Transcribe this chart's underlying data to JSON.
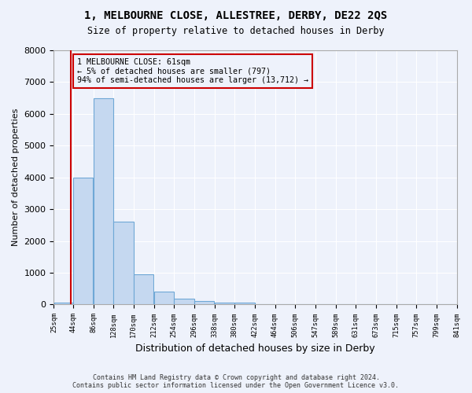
{
  "title": "1, MELBOURNE CLOSE, ALLESTREE, DERBY, DE22 2QS",
  "subtitle": "Size of property relative to detached houses in Derby",
  "xlabel": "Distribution of detached houses by size in Derby",
  "ylabel": "Number of detached properties",
  "bin_edges": [
    25,
    65,
    107,
    149,
    191,
    233,
    275,
    317,
    359,
    401,
    443,
    485,
    527,
    569,
    611,
    653,
    695,
    737,
    779,
    821,
    863
  ],
  "bar_values": [
    50,
    4000,
    6500,
    2600,
    950,
    400,
    180,
    100,
    60,
    50,
    10,
    5,
    3,
    2,
    1,
    1,
    0,
    0,
    0,
    0
  ],
  "bar_color": "#c5d8f0",
  "bar_edge_color": "#6fa8d6",
  "tick_labels": [
    "25sqm",
    "44sqm",
    "86sqm",
    "128sqm",
    "170sqm",
    "212sqm",
    "254sqm",
    "296sqm",
    "338sqm",
    "380sqm",
    "422sqm",
    "464sqm",
    "506sqm",
    "547sqm",
    "589sqm",
    "631sqm",
    "673sqm",
    "715sqm",
    "757sqm",
    "799sqm",
    "841sqm"
  ],
  "ylim": [
    0,
    8000
  ],
  "yticks": [
    0,
    1000,
    2000,
    3000,
    4000,
    5000,
    6000,
    7000,
    8000
  ],
  "property_line_x": 61,
  "property_line_color": "#cc0000",
  "annotation_text": "1 MELBOURNE CLOSE: 61sqm\n← 5% of detached houses are smaller (797)\n94% of semi-detached houses are larger (13,712) →",
  "annotation_box_color": "#cc0000",
  "footer_line1": "Contains HM Land Registry data © Crown copyright and database right 2024.",
  "footer_line2": "Contains public sector information licensed under the Open Government Licence v3.0.",
  "background_color": "#eef2fb",
  "grid_color": "#ffffff",
  "figsize": [
    6.0,
    5.0
  ],
  "dpi": 100
}
